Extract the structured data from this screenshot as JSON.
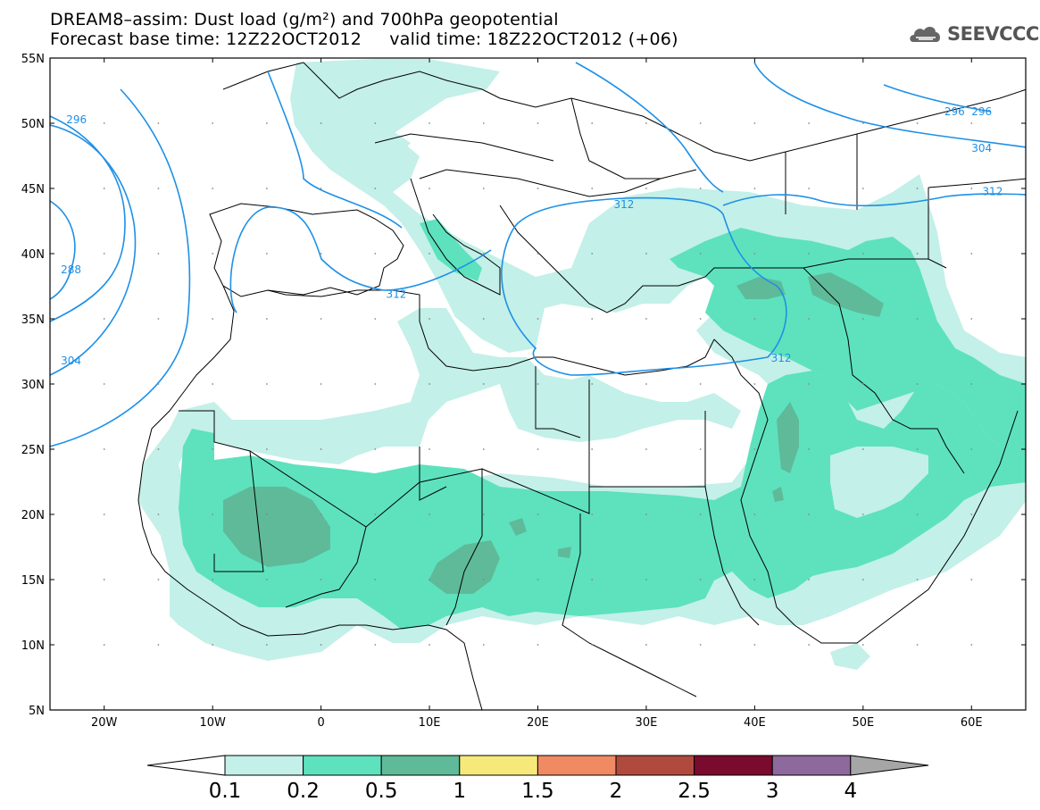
{
  "header": {
    "title_line1": "DREAM8–assim: Dust load (g/m²) and 700hPa geopotential",
    "title_line2": "Forecast base time: 12Z22OCT2012     valid time: 18Z22OCT2012 (+06)",
    "logo_text": "SEEVCCC"
  },
  "map": {
    "lat_labels": [
      "55N",
      "50N",
      "45N",
      "40N",
      "35N",
      "30N",
      "25N",
      "20N",
      "15N",
      "10N",
      "5N"
    ],
    "lon_labels": [
      "20W",
      "10W",
      "0",
      "10E",
      "20E",
      "30E",
      "40E",
      "50E",
      "60E"
    ],
    "contour_labels": [
      {
        "text": "296",
        "lon": -23.5,
        "lat": 50.0
      },
      {
        "text": "288",
        "lon": -24.0,
        "lat": 38.5
      },
      {
        "text": "304",
        "lon": -24.0,
        "lat": 31.5
      },
      {
        "text": "312",
        "lon": 6.0,
        "lat": 36.6
      },
      {
        "text": "312",
        "lon": 27.0,
        "lat": 43.5
      },
      {
        "text": "312",
        "lon": 41.5,
        "lat": 31.7
      },
      {
        "text": "312",
        "lon": 61.0,
        "lat": 44.5
      },
      {
        "text": "304",
        "lon": 60.0,
        "lat": 47.8
      },
      {
        "text": "296",
        "lon": 57.5,
        "lat": 50.6
      },
      {
        "text": "296",
        "lon": 60.0,
        "lat": 50.6
      }
    ],
    "colors": {
      "contour": "#1e90e6",
      "border": "#000000",
      "level_0_1": "#c3f0e8",
      "level_0_2": "#5de2bd",
      "level_0_5": "#5fba99"
    }
  },
  "colorbar": {
    "labels": [
      "0.1",
      "0.2",
      "0.5",
      "1",
      "1.5",
      "2",
      "2.5",
      "3",
      "4"
    ],
    "colors": [
      "#c3f0e8",
      "#5de2bd",
      "#5fba99",
      "#f6e97a",
      "#ef8a62",
      "#b04a3e",
      "#7a0a2e",
      "#8d699d"
    ],
    "under_color": "#ffffff",
    "over_color": "#a6a6a6"
  }
}
